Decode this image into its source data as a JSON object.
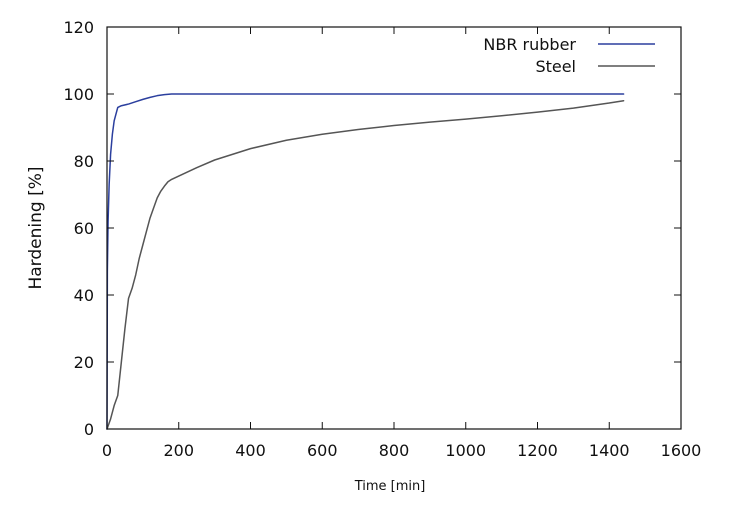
{
  "chart_data": {
    "type": "line",
    "title": "",
    "xlabel": "Time [min]",
    "ylabel": "Hardening [%]",
    "xlim": [
      0,
      1600
    ],
    "ylim": [
      0,
      120
    ],
    "x_ticks": [
      "0",
      "200",
      "400",
      "600",
      "800",
      "1000",
      "1200",
      "1400",
      "1600"
    ],
    "y_ticks": [
      "0",
      "20",
      "40",
      "60",
      "80",
      "100",
      "120"
    ],
    "grid": false,
    "legend_position": "top-right",
    "series": [
      {
        "name": "NBR rubber",
        "color": "#2b3f9e",
        "points": [
          [
            0,
            0
          ],
          [
            1,
            47
          ],
          [
            3,
            62
          ],
          [
            6,
            73
          ],
          [
            10,
            82
          ],
          [
            15,
            88
          ],
          [
            20,
            92
          ],
          [
            25,
            94
          ],
          [
            30,
            96
          ],
          [
            40,
            96.5
          ],
          [
            60,
            97
          ],
          [
            80,
            97.7
          ],
          [
            100,
            98.4
          ],
          [
            120,
            99
          ],
          [
            140,
            99.5
          ],
          [
            160,
            99.8
          ],
          [
            180,
            100
          ],
          [
            200,
            100
          ],
          [
            300,
            100
          ],
          [
            600,
            100
          ],
          [
            1000,
            100
          ],
          [
            1200,
            100
          ],
          [
            1440,
            100
          ]
        ]
      },
      {
        "name": "Steel",
        "color": "#555555",
        "points": [
          [
            0,
            0
          ],
          [
            10,
            3
          ],
          [
            20,
            7
          ],
          [
            30,
            10
          ],
          [
            40,
            20
          ],
          [
            50,
            30
          ],
          [
            60,
            39
          ],
          [
            70,
            42
          ],
          [
            80,
            46
          ],
          [
            90,
            51
          ],
          [
            100,
            55
          ],
          [
            110,
            59
          ],
          [
            120,
            63
          ],
          [
            130,
            66
          ],
          [
            140,
            69
          ],
          [
            150,
            71
          ],
          [
            160,
            72.5
          ],
          [
            170,
            73.8
          ],
          [
            180,
            74.5
          ],
          [
            200,
            75.5
          ],
          [
            250,
            78
          ],
          [
            300,
            80.3
          ],
          [
            400,
            83.7
          ],
          [
            500,
            86.2
          ],
          [
            600,
            88
          ],
          [
            700,
            89.4
          ],
          [
            800,
            90.6
          ],
          [
            900,
            91.6
          ],
          [
            1000,
            92.5
          ],
          [
            1100,
            93.5
          ],
          [
            1200,
            94.6
          ],
          [
            1300,
            95.8
          ],
          [
            1400,
            97.3
          ],
          [
            1440,
            98
          ]
        ]
      }
    ]
  }
}
